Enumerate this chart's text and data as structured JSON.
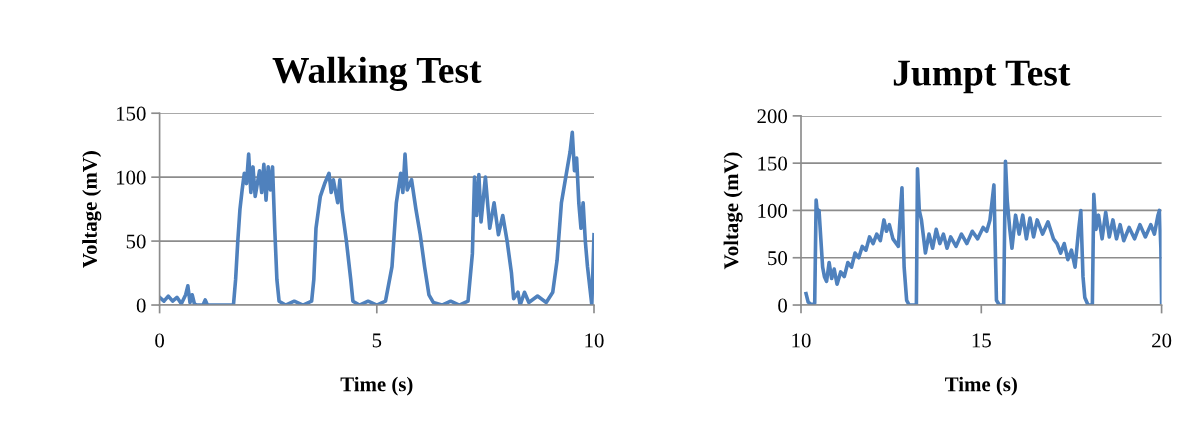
{
  "chart_data": [
    {
      "type": "line",
      "title": "Walking Test",
      "xlabel": "Time (s)",
      "ylabel": "Voltage (mV)",
      "xlim": [
        0,
        10
      ],
      "xticks": [
        0,
        5,
        10
      ],
      "ylim": [
        0,
        150
      ],
      "yticks": [
        0,
        50,
        100,
        150
      ],
      "grid": "y",
      "marker": "none",
      "line_style": "solid",
      "series": [
        {
          "color": "#4f81bd",
          "x": [
            0,
            0.1,
            0.2,
            0.3,
            0.4,
            0.5,
            0.6,
            0.65,
            0.7,
            0.75,
            0.8,
            0.85,
            1.0,
            1.05,
            1.1,
            1.7,
            1.75,
            1.8,
            1.85,
            1.9,
            1.95,
            2.0,
            2.05,
            2.1,
            2.15,
            2.2,
            2.3,
            2.35,
            2.4,
            2.45,
            2.5,
            2.55,
            2.6,
            2.65,
            2.7,
            2.75,
            2.9,
            3.1,
            3.3,
            3.5,
            3.55,
            3.6,
            3.7,
            3.8,
            3.9,
            3.95,
            4.0,
            4.1,
            4.15,
            4.2,
            4.3,
            4.4,
            4.45,
            4.6,
            4.8,
            5.0,
            5.2,
            5.35,
            5.45,
            5.55,
            5.6,
            5.65,
            5.7,
            5.8,
            5.9,
            6.0,
            6.1,
            6.2,
            6.3,
            6.5,
            6.7,
            6.9,
            7.1,
            7.2,
            7.25,
            7.3,
            7.35,
            7.4,
            7.5,
            7.6,
            7.7,
            7.8,
            7.9,
            8.0,
            8.1,
            8.15,
            8.25,
            8.3,
            8.4,
            8.5,
            8.7,
            8.9,
            9.05,
            9.15,
            9.25,
            9.35,
            9.45,
            9.5,
            9.55,
            9.6,
            9.65,
            9.7,
            9.75,
            9.8,
            9.85,
            9.9,
            9.95,
            10.0
          ],
          "values": [
            6,
            3,
            7,
            3,
            6,
            1,
            8,
            15,
            2,
            8,
            1,
            0,
            0,
            4,
            0,
            0,
            20,
            50,
            75,
            90,
            103,
            95,
            118,
            88,
            108,
            85,
            105,
            88,
            110,
            82,
            108,
            90,
            108,
            60,
            20,
            3,
            0,
            3,
            0,
            3,
            20,
            60,
            85,
            95,
            103,
            88,
            98,
            80,
            98,
            75,
            50,
            20,
            3,
            0,
            3,
            0,
            3,
            30,
            80,
            103,
            88,
            118,
            90,
            98,
            75,
            55,
            30,
            8,
            2,
            0,
            3,
            0,
            3,
            40,
            100,
            70,
            102,
            65,
            100,
            60,
            80,
            55,
            70,
            50,
            25,
            5,
            10,
            0,
            10,
            2,
            7,
            2,
            10,
            35,
            80,
            100,
            120,
            135,
            105,
            115,
            80,
            60,
            80,
            50,
            30,
            15,
            0,
            55
          ]
        }
      ]
    },
    {
      "type": "line",
      "title": "Jumpt Test",
      "xlabel": "Time (s)",
      "ylabel": "Voltage (mV)",
      "xlim": [
        10,
        20
      ],
      "xticks": [
        10,
        15,
        20
      ],
      "ylim": [
        0,
        200
      ],
      "yticks": [
        0,
        50,
        100,
        150,
        200
      ],
      "grid": "y",
      "marker": "none",
      "line_style": "solid",
      "series": [
        {
          "color": "#4f81bd",
          "x": [
            10.14,
            10.2,
            10.3,
            10.38,
            10.42,
            10.46,
            10.5,
            10.55,
            10.6,
            10.65,
            10.71,
            10.78,
            10.85,
            10.92,
            11.0,
            11.1,
            11.2,
            11.3,
            11.4,
            11.5,
            11.6,
            11.7,
            11.8,
            11.9,
            12.0,
            12.1,
            12.2,
            12.3,
            12.37,
            12.45,
            12.55,
            12.7,
            12.76,
            12.8,
            12.86,
            12.93,
            13.0,
            13.2,
            13.23,
            13.28,
            13.34,
            13.45,
            13.55,
            13.65,
            13.75,
            13.85,
            13.95,
            14.05,
            14.15,
            14.3,
            14.45,
            14.6,
            14.75,
            14.9,
            15.05,
            15.15,
            15.24,
            15.3,
            15.35,
            15.4,
            15.42,
            15.5,
            15.62,
            15.67,
            15.72,
            15.79,
            15.85,
            15.95,
            16.05,
            16.15,
            16.25,
            16.35,
            16.45,
            16.55,
            16.7,
            16.85,
            17.0,
            17.1,
            17.2,
            17.3,
            17.4,
            17.5,
            17.6,
            17.7,
            17.76,
            17.82,
            17.87,
            17.96,
            18.08,
            18.12,
            18.18,
            18.25,
            18.35,
            18.45,
            18.55,
            18.65,
            18.75,
            18.85,
            18.95,
            19.1,
            19.25,
            19.4,
            19.55,
            19.7,
            19.8,
            19.9,
            19.94,
            19.98,
            20.0
          ],
          "values": [
            12,
            3,
            0,
            2,
            111,
            95,
            100,
            70,
            40,
            30,
            25,
            45,
            28,
            38,
            22,
            35,
            30,
            45,
            40,
            55,
            50,
            62,
            58,
            72,
            65,
            75,
            68,
            90,
            78,
            85,
            70,
            62,
            100,
            124,
            40,
            5,
            0,
            0,
            144,
            100,
            90,
            55,
            75,
            60,
            80,
            65,
            75,
            60,
            72,
            62,
            75,
            65,
            78,
            70,
            82,
            78,
            90,
            110,
            127,
            40,
            5,
            0,
            0,
            152,
            110,
            80,
            60,
            95,
            75,
            95,
            70,
            92,
            72,
            90,
            75,
            88,
            70,
            65,
            55,
            65,
            48,
            58,
            40,
            80,
            100,
            30,
            8,
            0,
            0,
            117,
            80,
            95,
            70,
            98,
            72,
            90,
            70,
            85,
            68,
            82,
            70,
            85,
            72,
            85,
            75,
            95,
            100,
            60,
            3
          ]
        }
      ]
    }
  ]
}
